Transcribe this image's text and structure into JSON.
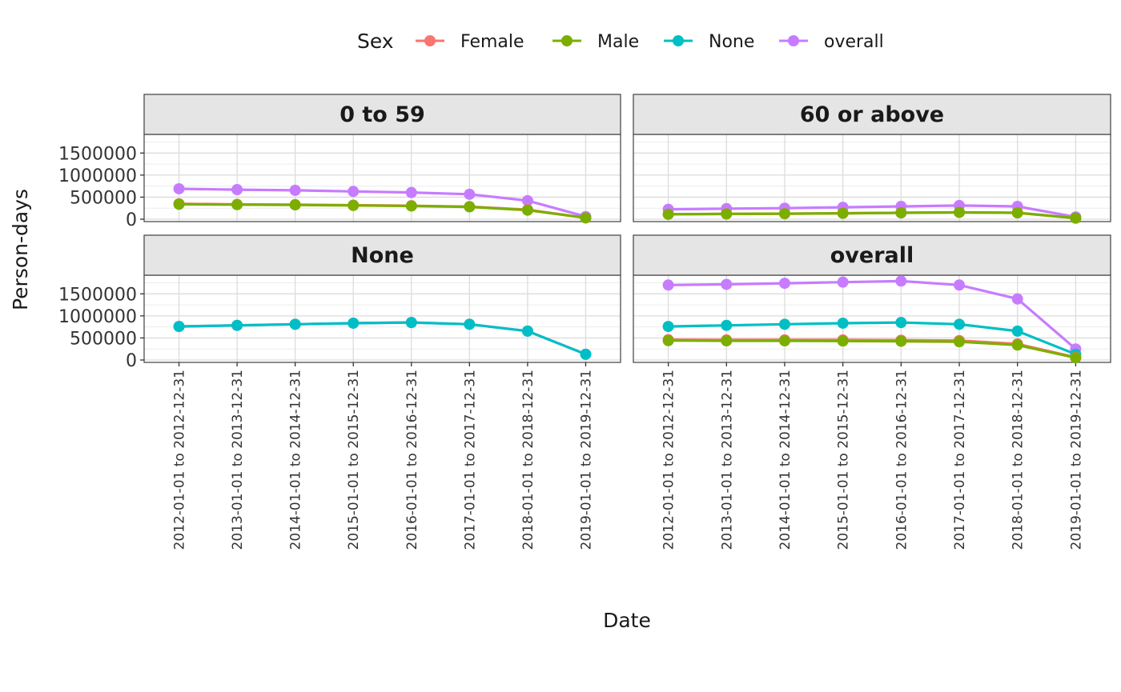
{
  "chart_data": {
    "type": "line",
    "xlabel": "Date",
    "ylabel": "Person-days",
    "legend_title": "Sex",
    "legend_position": "top",
    "grid": true,
    "ylim": [
      0,
      1850000
    ],
    "y_ticks": [
      0,
      500000,
      1000000,
      1500000
    ],
    "y_tick_labels": [
      "0",
      "500000",
      "1000000",
      "1500000"
    ],
    "categories": [
      "2012-01-01 to 2012-12-31",
      "2013-01-01 to 2013-12-31",
      "2014-01-01 to 2014-12-31",
      "2015-01-01 to 2015-12-31",
      "2016-01-01 to 2016-12-31",
      "2017-01-01 to 2017-12-31",
      "2018-01-01 to 2018-12-31",
      "2019-01-01 to 2019-12-31"
    ],
    "legend": [
      {
        "name": "Female",
        "color": "#F8766D"
      },
      {
        "name": "Male",
        "color": "#7CAE00"
      },
      {
        "name": "None",
        "color": "#00BFC4"
      },
      {
        "name": "overall",
        "color": "#C77CFF"
      }
    ],
    "panels": [
      {
        "title": "0 to 59",
        "series": [
          {
            "name": "overall",
            "values": [
              690000,
              670000,
              655000,
              630000,
              605000,
              565000,
              420000,
              60000
            ]
          },
          {
            "name": "Female",
            "values": [
              350000,
              335000,
              330000,
              318000,
              305000,
              285000,
              215000,
              30000
            ]
          },
          {
            "name": "Male",
            "values": [
              340000,
              330000,
              325000,
              312000,
              300000,
              280000,
              205000,
              30000
            ]
          }
        ]
      },
      {
        "title": "60 or above",
        "series": [
          {
            "name": "overall",
            "values": [
              225000,
              240000,
              250000,
              270000,
              290000,
              310000,
              290000,
              50000
            ]
          },
          {
            "name": "Female",
            "values": [
              112000,
              120000,
              125000,
              135000,
              145000,
              155000,
              145000,
              25000
            ]
          },
          {
            "name": "Male",
            "values": [
              112000,
              120000,
              125000,
              135000,
              145000,
              155000,
              145000,
              25000
            ]
          }
        ]
      },
      {
        "title": "None",
        "series": [
          {
            "name": "overall",
            "values": [
              760000,
              785000,
              810000,
              835000,
              850000,
              810000,
              655000,
              130000
            ]
          },
          {
            "name": "None",
            "values": [
              760000,
              785000,
              810000,
              835000,
              850000,
              810000,
              655000,
              130000
            ]
          }
        ]
      },
      {
        "title": "overall",
        "series": [
          {
            "name": "overall",
            "values": [
              1700000,
              1715000,
              1740000,
              1765000,
              1790000,
              1700000,
              1385000,
              250000
            ]
          },
          {
            "name": "None",
            "values": [
              760000,
              785000,
              810000,
              835000,
              850000,
              810000,
              655000,
              130000
            ]
          },
          {
            "name": "Female",
            "values": [
              460000,
              455000,
              455000,
              455000,
              450000,
              440000,
              365000,
              60000
            ]
          },
          {
            "name": "Male",
            "values": [
              440000,
              435000,
              435000,
              430000,
              425000,
              415000,
              340000,
              50000
            ]
          }
        ]
      }
    ]
  }
}
